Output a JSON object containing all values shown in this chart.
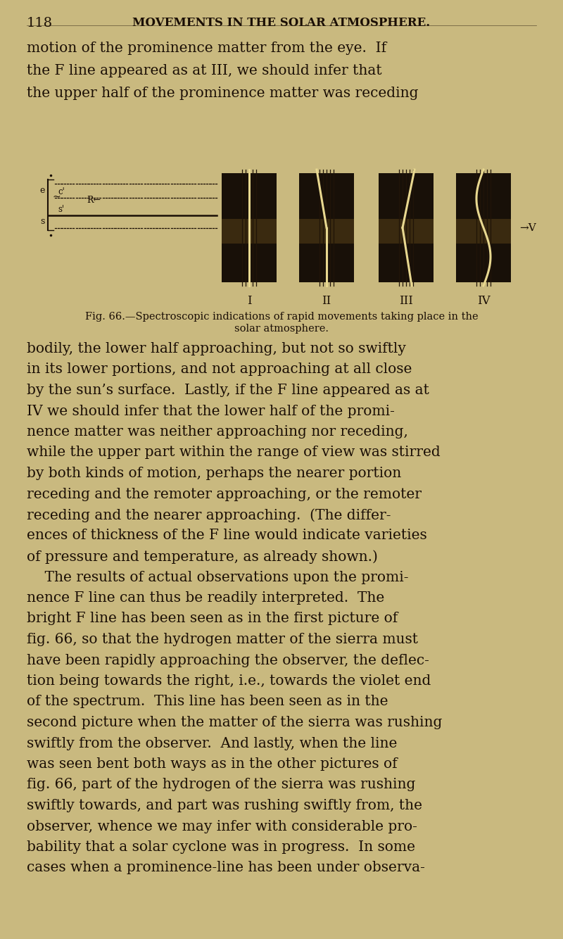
{
  "background_color": "#c9b97f",
  "text_color": "#1a0e05",
  "header_line1": "118",
  "header_line2": "MOVEMENTS IN THE SOLAR ATMOSPHERE.",
  "para1_lines": [
    "motion of the prominence matter from the eye.  If",
    "the F line appeared as at III, we should infer that",
    "the upper half of the prominence matter was receding"
  ],
  "para2_lines": [
    "bodily, the lower half approaching, but not so swiftly",
    "in its lower portions, and not approaching at all close",
    "by the sun’s surface.  Lastly, if the F line appeared as at",
    "IV we should infer that the lower half of the promi-",
    "nence matter was neither approaching nor receding,",
    "while the upper part within the range of view was stirred",
    "by both kinds of motion, perhaps the nearer portion",
    "receding and the remoter approaching, or the remoter",
    "receding and the nearer approaching.  (The differ-",
    "ences of thickness of the F line would indicate varieties",
    "of pressure and temperature, as already shown.)",
    "    The results of actual observations upon the promi-",
    "nence F line can thus be readily interpreted.  The",
    "bright F line has been seen as in the first picture of",
    "fig. 66, so that the hydrogen matter of the sierra must",
    "have been rapidly approaching the observer, the deflec-",
    "tion being towards the right, i.e., towards the violet end",
    "of the spectrum.  This line has been seen as in the",
    "second picture when the matter of the sierra was rushing",
    "swiftly from the observer.  And lastly, when the line",
    "was seen bent both ways as in the other pictures of",
    "fig. 66, part of the hydrogen of the sierra was rushing",
    "swiftly towards, and part was rushing swiftly from, the",
    "observer, whence we may infer with considerable pro-",
    "bability that a solar cyclone was in progress.  In some",
    "cases when a prominence-line has been under observa-"
  ],
  "fig_caption_line1": "Fig. 66.—Spectroscopic indications of rapid movements taking place in the",
  "fig_caption_line2": "solar atmosphere.",
  "dark_color": "#181008",
  "medium_dark": "#2a1e0a",
  "line_color": "#c8b060",
  "roman_labels": [
    "I",
    "II",
    "III",
    "IV"
  ]
}
